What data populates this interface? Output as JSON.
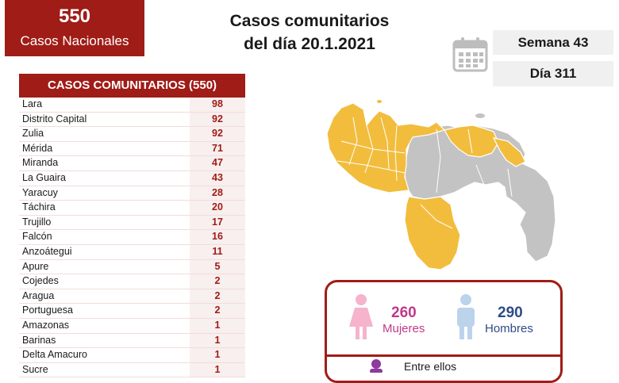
{
  "badge": {
    "number": "550",
    "label": "Casos Nacionales"
  },
  "title": {
    "line1": "Casos comunitarios",
    "line2": "del día 20.1.2021"
  },
  "info": {
    "week": "Semana 43",
    "day": "Día 311"
  },
  "table": {
    "header": "CASOS COMUNITARIOS (550)",
    "rows": [
      {
        "state": "Lara",
        "value": "98"
      },
      {
        "state": "Distrito Capital",
        "value": "92"
      },
      {
        "state": "Zulia",
        "value": "92"
      },
      {
        "state": "Mérida",
        "value": "71"
      },
      {
        "state": "Miranda",
        "value": "47"
      },
      {
        "state": "La Guaira",
        "value": "43"
      },
      {
        "state": "Yaracuy",
        "value": "28"
      },
      {
        "state": "Táchira",
        "value": "20"
      },
      {
        "state": "Trujillo",
        "value": "17"
      },
      {
        "state": "Falcón",
        "value": "16"
      },
      {
        "state": "Anzoátegui",
        "value": "11"
      },
      {
        "state": "Apure",
        "value": "5"
      },
      {
        "state": "Cojedes",
        "value": "2"
      },
      {
        "state": "Aragua",
        "value": "2"
      },
      {
        "state": "Portuguesa",
        "value": "2"
      },
      {
        "state": "Amazonas",
        "value": "1"
      },
      {
        "state": "Barinas",
        "value": "1"
      },
      {
        "state": "Delta Amacuro",
        "value": "1"
      },
      {
        "state": "Sucre",
        "value": "1"
      }
    ]
  },
  "gender": {
    "women_count": "260",
    "women_label": "Mujeres",
    "men_count": "290",
    "men_label": "Hombres",
    "between_label": "Entre ellos"
  },
  "colors": {
    "brand_red": "#a01c17",
    "map_affected": "#f2bd3d",
    "map_unaffected": "#c3c3c3",
    "women": "#f5b3cc",
    "men": "#bcd3ec",
    "child_icon": "#8e3a9e"
  },
  "icons": [
    "calendar-icon",
    "woman-icon",
    "man-icon",
    "child-icon"
  ]
}
